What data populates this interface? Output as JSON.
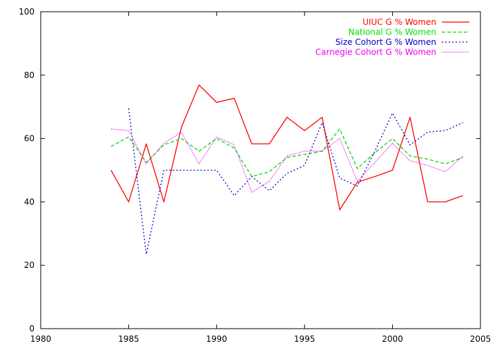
{
  "chart_data": {
    "type": "line",
    "xlim": [
      1980,
      2005
    ],
    "ylim": [
      0,
      100
    ],
    "xticks": [
      1980,
      1985,
      1990,
      1995,
      2000,
      2005
    ],
    "yticks": [
      0,
      20,
      40,
      60,
      80,
      100
    ],
    "grid": false,
    "legend_position": "top-right",
    "x": [
      1984,
      1985,
      1986,
      1987,
      1988,
      1989,
      1990,
      1991,
      1992,
      1993,
      1994,
      1995,
      1996,
      1997,
      1998,
      1999,
      2000,
      2001,
      2002,
      2003,
      2004
    ],
    "series": [
      {
        "name": "UIUC G % Women",
        "color": "#ff0000",
        "dash": "solid",
        "values": [
          50,
          40,
          58.3,
          40,
          63.6,
          76.9,
          71.4,
          72.7,
          58.3,
          58.3,
          66.7,
          62.5,
          66.7,
          37.5,
          46.2,
          48,
          50,
          66.7,
          40,
          40,
          42
        ]
      },
      {
        "name": "National G % Women",
        "color": "#00dd00",
        "dash": "dashed",
        "values": [
          57.5,
          60.5,
          52.5,
          58,
          60,
          56,
          60,
          57,
          48,
          49.5,
          54,
          55,
          56,
          63,
          50.5,
          55.5,
          60,
          54.5,
          53.5,
          52,
          54
        ]
      },
      {
        "name": "Size Cohort G % Women",
        "color": "#0000cc",
        "dash": "dotted",
        "values": [
          null,
          69.5,
          23.5,
          50,
          50,
          50,
          50,
          42,
          48,
          43.5,
          49,
          51.5,
          65,
          47.5,
          45,
          56,
          68,
          58,
          62,
          62.5,
          65
        ]
      },
      {
        "name": "Carnegie Cohort G % Women",
        "color": "#ee00ee",
        "dash": "fine-dotted",
        "values": [
          63,
          62.5,
          52,
          58.5,
          62,
          52,
          60.5,
          58,
          43,
          46.5,
          54.5,
          56,
          56,
          60,
          46.5,
          52.5,
          58.5,
          53,
          51.5,
          49.5,
          54.5
        ]
      }
    ]
  }
}
